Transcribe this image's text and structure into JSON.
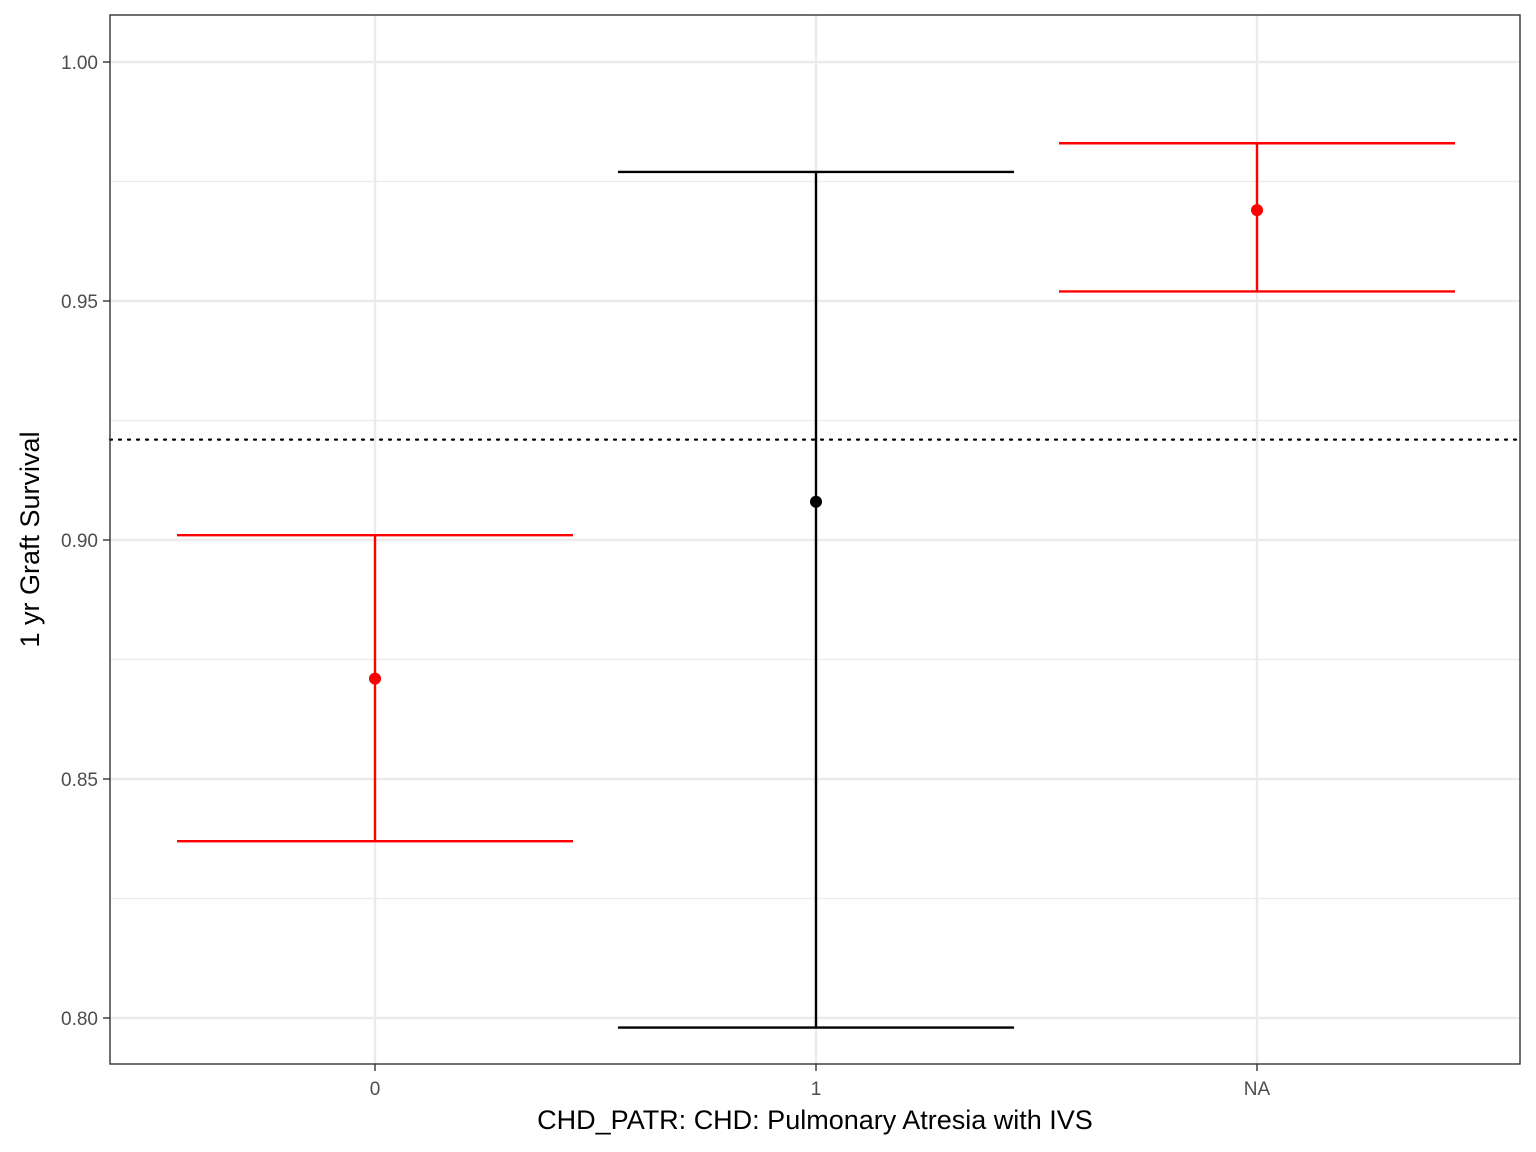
{
  "chart_data": {
    "type": "scatter",
    "subtype": "point-with-error-bars",
    "xlabel": "CHD_PATR: CHD: Pulmonary Atresia with IVS",
    "ylabel": "1 yr Graft Survival",
    "categories": [
      "0",
      "1",
      "NA"
    ],
    "points": [
      {
        "category": "0",
        "estimate": 0.871,
        "lower": 0.837,
        "upper": 0.901,
        "color": "#ff0000"
      },
      {
        "category": "1",
        "estimate": 0.908,
        "lower": 0.798,
        "upper": 0.977,
        "color": "#000000"
      },
      {
        "category": "NA",
        "estimate": 0.969,
        "lower": 0.952,
        "upper": 0.983,
        "color": "#ff0000"
      }
    ],
    "reference_line": {
      "y": 0.921,
      "style": "dotted",
      "color": "#000000"
    },
    "ylim": [
      0.79,
      1.01
    ],
    "y_ticks": [
      0.8,
      0.85,
      0.9,
      0.95,
      1.0
    ],
    "y_tick_labels": [
      "0.80",
      "0.85",
      "0.90",
      "0.95",
      "1.00"
    ],
    "grid": true,
    "theme": "bw",
    "legend": "none"
  }
}
